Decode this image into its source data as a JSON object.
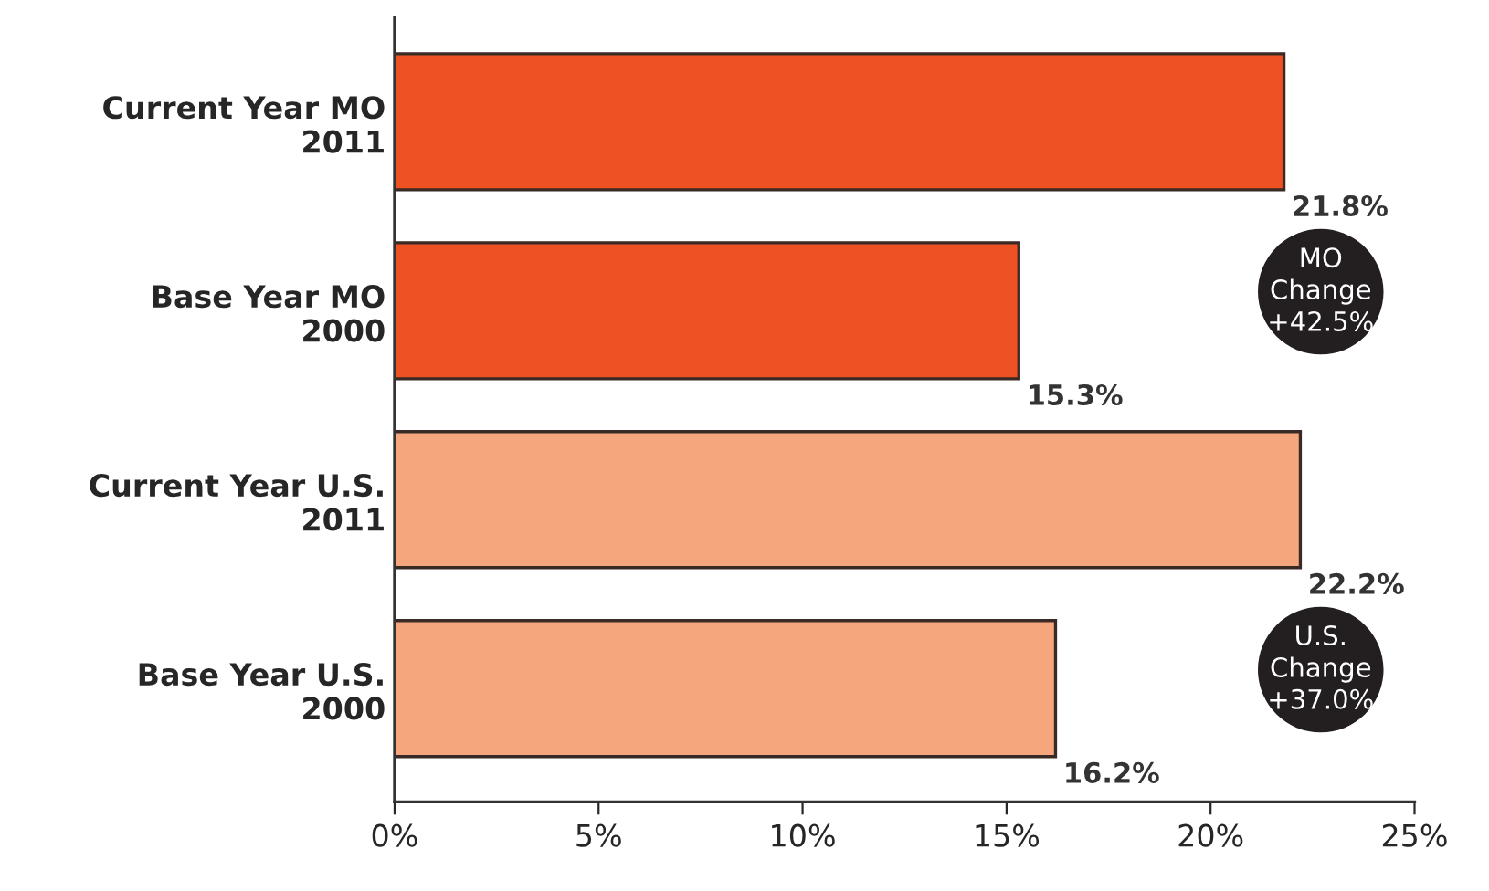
{
  "chart_data": {
    "type": "bar",
    "orientation": "horizontal",
    "categories": [
      "Current Year MO\n2011",
      "Base Year MO\n2000",
      "Current Year U.S.\n2011",
      "Base Year U.S.\n2000"
    ],
    "values": [
      21.8,
      15.3,
      22.2,
      16.2
    ],
    "colors": [
      "#ef5222",
      "#ef5222",
      "#f6a67c",
      "#f6a67c"
    ],
    "value_labels": [
      "21.8%",
      "15.3%",
      "22.2%",
      "16.2%"
    ],
    "xlim": [
      0,
      25
    ],
    "xticks": [
      {
        "value": 0,
        "label": "0%"
      },
      {
        "value": 5,
        "label": "5%"
      },
      {
        "value": 10,
        "label": "10%"
      },
      {
        "value": 15,
        "label": "15%"
      },
      {
        "value": 20,
        "label": "20%"
      },
      {
        "value": 25,
        "label": "25%"
      }
    ],
    "annotations": [
      "MO\nChange\n+42.5%",
      "U.S.\nChange\n+37.0%"
    ],
    "grid": false,
    "legend": false
  }
}
